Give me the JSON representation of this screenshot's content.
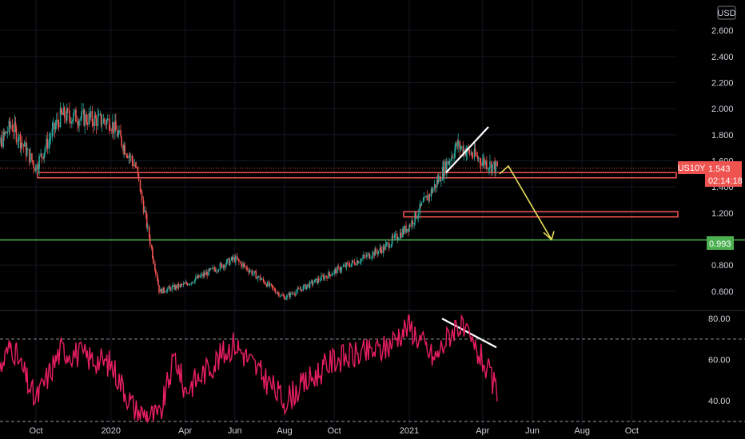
{
  "currency_badge": "USD",
  "symbol_tag": "US10Y",
  "last_price_label": "1.543",
  "countdown_label": "02:14:18",
  "level_label": "0.993",
  "colors": {
    "up": "#26a69a",
    "down": "#ef5350",
    "zone": "#ef5350",
    "support": "#4caf50",
    "rsi": "#e91e63",
    "trend": "#ffffff",
    "projection": "#e8e05a"
  },
  "chart_data": [
    {
      "type": "candlestick",
      "title": "",
      "x_tick_labels": [
        "Oct",
        "2020",
        "Apr",
        "Jun",
        "Aug",
        "Oct",
        "2021",
        "Apr",
        "Jun",
        "Aug",
        "Oct"
      ],
      "y_tick_labels": [
        "2.600",
        "2.400",
        "2.200",
        "2.000",
        "1.800",
        "1.600",
        "1.400",
        "1.200",
        "0.800",
        "0.600"
      ],
      "y_ticks": [
        2.6,
        2.4,
        2.2,
        2.0,
        1.8,
        1.6,
        1.4,
        1.2,
        0.8,
        0.6
      ],
      "ylim": [
        0.55,
        2.65
      ],
      "grid": true,
      "last_price": 1.543,
      "support_level": 0.993,
      "resistance_zones": [
        [
          1.47,
          1.51
        ],
        [
          1.17,
          1.21
        ]
      ],
      "key_points": [
        {
          "date": "2019-08",
          "value": 1.55
        },
        {
          "date": "2019-09",
          "value": 1.88
        },
        {
          "date": "2019-10",
          "value": 1.55
        },
        {
          "date": "2019-11",
          "value": 1.95
        },
        {
          "date": "2020-01",
          "value": 1.9
        },
        {
          "date": "2020-02",
          "value": 1.55
        },
        {
          "date": "2020-03",
          "value": 0.6
        },
        {
          "date": "2020-04",
          "value": 0.65
        },
        {
          "date": "2020-06",
          "value": 0.85
        },
        {
          "date": "2020-08",
          "value": 0.55
        },
        {
          "date": "2020-10",
          "value": 0.75
        },
        {
          "date": "2020-12",
          "value": 0.93
        },
        {
          "date": "2021-01",
          "value": 1.1
        },
        {
          "date": "2021-02",
          "value": 1.4
        },
        {
          "date": "2021-03",
          "value": 1.72
        },
        {
          "date": "2021-04",
          "value": 1.6
        },
        {
          "date": "2021-04-20",
          "value": 1.543
        }
      ]
    },
    {
      "type": "line",
      "title": "",
      "y_tick_labels": [
        "80.00",
        "60.00",
        "40.00"
      ],
      "y_ticks": [
        80,
        60,
        40
      ],
      "ylim": [
        30,
        82
      ],
      "bands": [
        70,
        30
      ],
      "key_points": [
        {
          "date": "2019-08",
          "value": 38
        },
        {
          "date": "2019-09",
          "value": 68
        },
        {
          "date": "2019-10",
          "value": 40
        },
        {
          "date": "2019-11",
          "value": 65
        },
        {
          "date": "2020-01",
          "value": 58
        },
        {
          "date": "2020-02",
          "value": 35
        },
        {
          "date": "2020-03",
          "value": 32
        },
        {
          "date": "2020-03-20",
          "value": 62
        },
        {
          "date": "2020-04",
          "value": 45
        },
        {
          "date": "2020-06",
          "value": 68
        },
        {
          "date": "2020-08",
          "value": 40
        },
        {
          "date": "2020-10",
          "value": 60
        },
        {
          "date": "2020-12",
          "value": 65
        },
        {
          "date": "2021-01",
          "value": 77
        },
        {
          "date": "2021-02",
          "value": 60
        },
        {
          "date": "2021-03",
          "value": 78
        },
        {
          "date": "2021-04",
          "value": 60
        },
        {
          "date": "2021-04-20",
          "value": 43
        }
      ]
    }
  ]
}
